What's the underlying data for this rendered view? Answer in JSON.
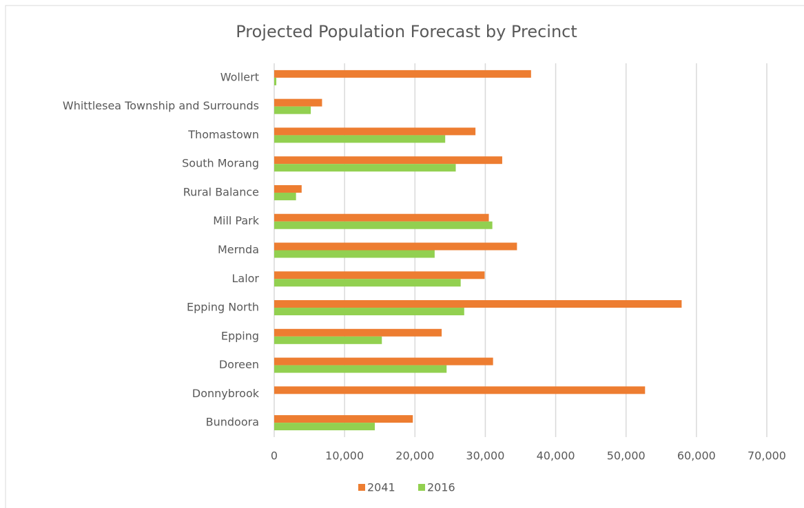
{
  "chart_data": {
    "type": "hbar",
    "title": "Projected Population Forecast by Precinct",
    "categories": [
      "Wollert",
      "Whittlesea Township and Surrounds",
      "Thomastown",
      "South Morang",
      "Rural Balance",
      "Mill Park",
      "Mernda",
      "Lalor",
      "Epping North",
      "Epping",
      "Doreen",
      "Donnybrook",
      "Bundoora"
    ],
    "series": [
      {
        "name": "2041",
        "color": "#ed7d31",
        "values": [
          36500,
          6800,
          28600,
          32400,
          3900,
          30500,
          34500,
          29900,
          57900,
          23800,
          31100,
          52700,
          19700
        ]
      },
      {
        "name": "2016",
        "color": "#92d050",
        "values": [
          300,
          5200,
          24300,
          25800,
          3100,
          31000,
          22800,
          26500,
          27000,
          15300,
          24500,
          0,
          14300
        ]
      }
    ],
    "xlim": [
      0,
      70000
    ],
    "xticks": [
      0,
      {
        "value": 10000,
        "label": "10,000"
      },
      {
        "value": 20000,
        "label": "20,000"
      },
      {
        "value": 30000,
        "label": "30,000"
      },
      {
        "value": 40000,
        "label": "40,000"
      },
      {
        "value": 50000,
        "label": "50,000"
      },
      {
        "value": 60000,
        "label": "60,000"
      },
      {
        "value": 70000,
        "label": "70,000"
      }
    ],
    "grid": true,
    "legend": "bottom"
  }
}
